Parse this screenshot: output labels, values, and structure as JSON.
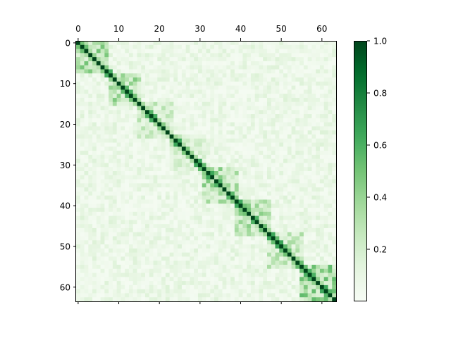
{
  "chart_data": {
    "type": "heatmap",
    "title": "",
    "xlabel": "",
    "ylabel": "",
    "n": 64,
    "xlim": [
      -0.5,
      63.5
    ],
    "ylim": [
      63.5,
      -0.5
    ],
    "x_ticks": [
      0,
      10,
      20,
      30,
      40,
      50,
      60
    ],
    "y_ticks": [
      0,
      10,
      20,
      30,
      40,
      50,
      60
    ],
    "x_tick_position": "top",
    "colormap": "Greens",
    "color_range": [
      0.0,
      1.0
    ],
    "colorbar_ticks": [
      0.2,
      0.4,
      0.6,
      0.8,
      1.0
    ],
    "colorbar_tick_labels": [
      "0.2",
      "0.4",
      "0.6",
      "0.8",
      "1.0"
    ],
    "diagonal_value": 1.0,
    "background_range": [
      0.02,
      0.16
    ],
    "blocks": [
      {
        "start": 0,
        "end": 7,
        "level": 0.42
      },
      {
        "start": 8,
        "end": 15,
        "level": 0.38
      },
      {
        "start": 15,
        "end": 23,
        "level": 0.28
      },
      {
        "start": 23,
        "end": 31,
        "level": 0.24
      },
      {
        "start": 31,
        "end": 39,
        "level": 0.4
      },
      {
        "start": 39,
        "end": 47,
        "level": 0.42
      },
      {
        "start": 47,
        "end": 55,
        "level": 0.3
      },
      {
        "start": 55,
        "end": 63,
        "level": 0.45
      }
    ],
    "grid": false,
    "legend": "colorbar right"
  }
}
